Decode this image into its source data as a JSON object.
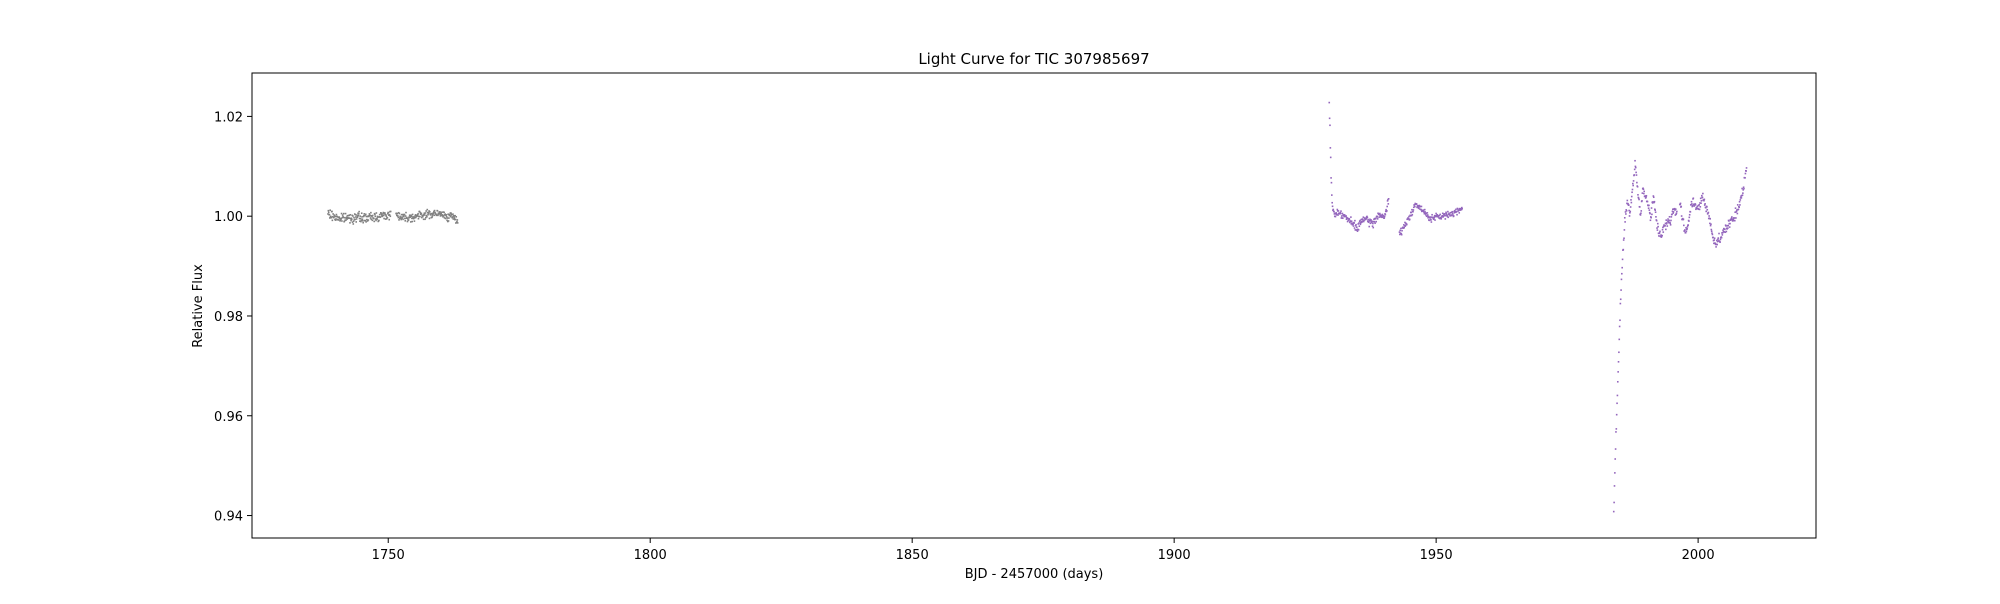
{
  "chart_data": {
    "type": "scatter",
    "title": "Light Curve for TIC 307985697",
    "xlabel": "BJD - 2457000 (days)",
    "ylabel": "Relative Flux",
    "xlim": [
      1724,
      2022.5
    ],
    "ylim": [
      0.9355,
      1.0287
    ],
    "xticks": [
      1750,
      1800,
      1850,
      1900,
      1950,
      2000
    ],
    "yticks": [
      0.94,
      0.96,
      0.98,
      1.0,
      1.02
    ],
    "ytick_labels": [
      "0.94",
      "0.96",
      "0.98",
      "1.00",
      "1.02"
    ],
    "grid": false,
    "legend": "none",
    "series": [
      {
        "color": "#808080",
        "segments": [
          {
            "x": [
              1738.5,
              1739.5,
              1741.0,
              1742.5,
              1744.0,
              1745.5,
              1747.0,
              1748.5,
              1749.5,
              1750.5
            ],
            "y": [
              1.0005,
              1.0,
              0.9995,
              0.9997,
              0.9998,
              0.9996,
              0.9998,
              1.0,
              1.0002,
              1.0003
            ],
            "spread": 0.0014
          },
          {
            "x": [
              1751.5,
              1752.5,
              1754.0,
              1755.5,
              1757.0,
              1758.5,
              1760.0,
              1761.5,
              1762.5,
              1763.3
            ],
            "y": [
              1.0005,
              0.9999,
              0.9998,
              1.0,
              1.0003,
              1.0005,
              1.0004,
              1.0,
              0.9997,
              0.999
            ],
            "spread": 0.0013
          }
        ]
      },
      {
        "color": "#9467bd",
        "segments": [
          {
            "x": [
              1929.6,
              1929.8,
              1930.0,
              1930.3,
              1930.7,
              1931.2,
              1932.0,
              1933.0,
              1934.0,
              1935.0,
              1936.0,
              1937.0,
              1938.0,
              1939.0,
              1940.0,
              1940.6,
              1941.0
            ],
            "y": [
              1.023,
              1.015,
              1.006,
              1.001,
              1.0005,
              1.0008,
              1.0005,
              0.9995,
              0.9985,
              0.9975,
              0.9995,
              0.999,
              0.9985,
              1.0005,
              0.9995,
              1.0015,
              1.004
            ],
            "spread": 0.0012
          },
          {
            "x": [
              1943.0,
              1944.0,
              1945.0,
              1946.0,
              1947.0,
              1948.0,
              1949.0,
              1950.0,
              1951.0,
              1952.0,
              1953.0,
              1954.0,
              1955.0
            ],
            "y": [
              0.9965,
              0.998,
              1.0,
              1.0025,
              1.0015,
              1.0005,
              0.9995,
              0.9998,
              1.0,
              1.0002,
              1.0005,
              1.001,
              1.0018
            ],
            "spread": 0.001
          },
          {
            "x": [
              1983.9,
              1984.3,
              1984.7,
              1985.1,
              1985.5,
              1986.0,
              1986.5,
              1987.0,
              1987.5,
              1988.0,
              1988.5,
              1989.0,
              1989.5,
              1990.0,
              1990.5,
              1991.0,
              1991.5,
              1992.0,
              1992.5,
              1993.0,
              1993.5,
              1994.0,
              1994.5,
              1995.0,
              1995.5,
              1996.0
            ],
            "y": [
              0.941,
              0.955,
              0.968,
              0.98,
              0.99,
              0.999,
              1.003,
              1.0,
              1.006,
              1.01,
              1.005,
              1.0,
              1.006,
              1.004,
              1.002,
              1.0,
              1.004,
              0.999,
              0.997,
              0.996,
              0.998,
              0.9985,
              0.999,
              1.0,
              1.0015,
              1.0005
            ],
            "spread": 0.0016
          },
          {
            "x": [
              1996.5,
              1997.0,
              1997.5,
              1998.0,
              1998.5,
              1999.0,
              1999.5,
              2000.0,
              2000.5,
              2001.0,
              2001.5,
              2002.0,
              2002.5,
              2003.0,
              2003.5,
              2004.0,
              2004.5,
              2005.0,
              2005.5,
              2006.0,
              2006.5,
              2007.0,
              2007.5,
              2008.0,
              2008.5,
              2009.0,
              2009.3
            ],
            "y": [
              1.002,
              1.0,
              0.997,
              0.998,
              1.001,
              1.003,
              1.002,
              1.001,
              1.003,
              1.0035,
              1.002,
              1.0,
              0.998,
              0.995,
              0.9945,
              0.9955,
              0.9965,
              0.997,
              0.998,
              0.9985,
              0.999,
              1.0,
              1.001,
              1.003,
              1.005,
              1.008,
              1.01
            ],
            "spread": 0.0016
          }
        ]
      }
    ]
  }
}
